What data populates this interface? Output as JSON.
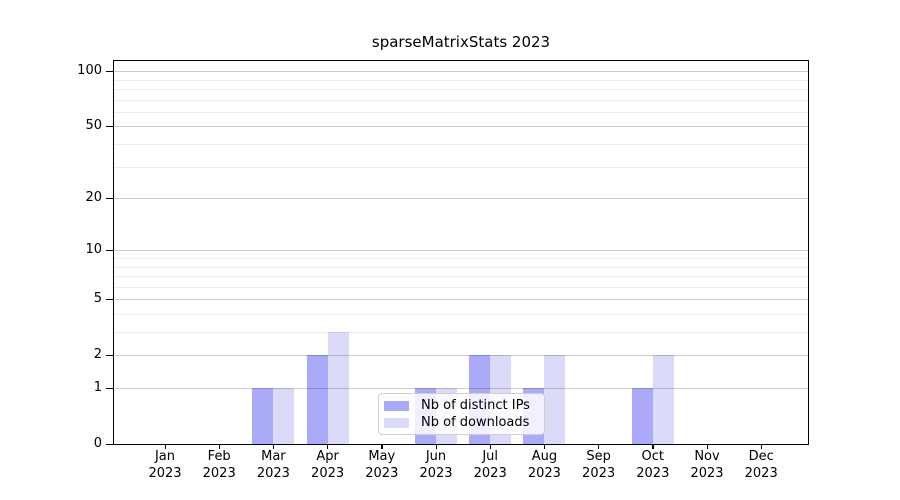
{
  "title": "sparseMatrixStats 2023",
  "chart_data": {
    "type": "bar",
    "categories": [
      "Jan",
      "Feb",
      "Mar",
      "Apr",
      "May",
      "Jun",
      "Jul",
      "Aug",
      "Sep",
      "Oct",
      "Nov",
      "Dec"
    ],
    "year": "2023",
    "series": [
      {
        "name": "Nb of distinct IPs",
        "color": "#aaaaf8",
        "values": [
          0,
          0,
          1,
          2,
          0,
          1,
          2,
          1,
          0,
          1,
          0,
          0
        ]
      },
      {
        "name": "Nb of downloads",
        "color": "#dbdbf9",
        "values": [
          0,
          0,
          1,
          3,
          0,
          1,
          2,
          2,
          0,
          2,
          0,
          0
        ]
      }
    ],
    "yscale": "log1p",
    "ylim": [
      0,
      112
    ],
    "y_major_ticks": [
      0,
      1,
      2,
      5,
      10,
      20,
      50,
      100
    ],
    "y_minor_gridlines": [
      3,
      4,
      6,
      7,
      8,
      9,
      30,
      40,
      60,
      70,
      80,
      90
    ],
    "grid": true,
    "legend_position": "lower center",
    "axis_color": "#000000",
    "major_grid_color": "#cccccc",
    "minor_grid_color": "#ededed"
  }
}
